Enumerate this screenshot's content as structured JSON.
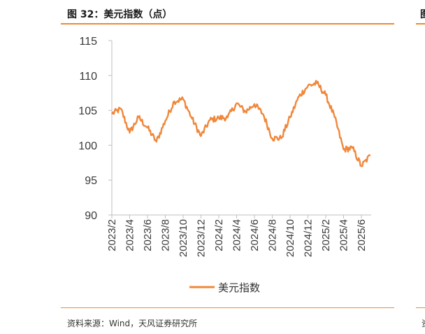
{
  "header": {
    "title": "图 32：美元指数（点）",
    "next_title_fragment": "图"
  },
  "footer": {
    "source": "资料来源：Wind，天风证券研究所",
    "next_source_fragment": "资"
  },
  "colors": {
    "accent": "#f08a2e",
    "series": "#f0873a",
    "axis": "#bfbfbf"
  },
  "chart_data": {
    "type": "line",
    "title": "",
    "xlabel": "",
    "ylabel": "",
    "ylim": [
      90,
      115
    ],
    "yticks": [
      "90",
      "95",
      "100",
      "105",
      "110",
      "115"
    ],
    "xticks": [
      "2023/2",
      "2023/4",
      "2023/6",
      "2023/8",
      "2023/10",
      "2023/12",
      "2024/2",
      "2024/4",
      "2024/6",
      "2024/8",
      "2024/10",
      "2024/12",
      "2025/2",
      "2025/4",
      "2025/6"
    ],
    "legend": "bottom-center",
    "grid": false,
    "series": [
      {
        "name": "美元指数",
        "x": [
          "2023/2",
          "2023/3",
          "2023/4",
          "2023/5",
          "2023/6",
          "2023/7",
          "2023/8",
          "2023/9",
          "2023/10",
          "2023/11",
          "2023/12",
          "2024/1",
          "2024/2",
          "2024/3",
          "2024/4",
          "2024/5",
          "2024/6",
          "2024/7",
          "2024/8",
          "2024/9",
          "2024/10",
          "2024/11",
          "2024/12",
          "2025/1",
          "2025/2",
          "2025/3",
          "2025/4",
          "2025/5",
          "2025/6",
          "2025/7"
        ],
        "values": [
          104.5,
          105.2,
          101.8,
          104.0,
          102.5,
          100.5,
          103.5,
          106.3,
          106.6,
          103.8,
          101.3,
          103.6,
          103.9,
          104.0,
          106.0,
          104.8,
          105.9,
          104.4,
          101.0,
          101.0,
          104.0,
          107.0,
          108.5,
          108.9,
          107.2,
          104.0,
          99.4,
          99.6,
          97.0,
          98.5
        ]
      }
    ]
  }
}
